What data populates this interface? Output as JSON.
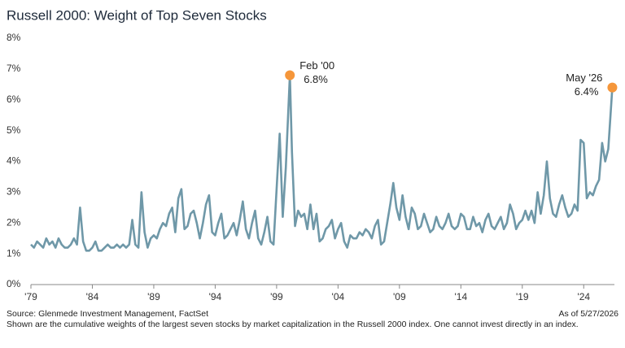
{
  "chart_data": {
    "type": "line",
    "title": "Russell 2000: Weight of Top Seven Stocks",
    "color": "#6f98a8",
    "highlight_color": "#f5963a",
    "xlim": [
      1979,
      2026.5
    ],
    "ylim": [
      0,
      8
    ],
    "xticks": [
      {
        "value": 1979,
        "label": "'79"
      },
      {
        "value": 1984,
        "label": "'84"
      },
      {
        "value": 1989,
        "label": "'89"
      },
      {
        "value": 1994,
        "label": "'94"
      },
      {
        "value": 1999,
        "label": "'99"
      },
      {
        "value": 2004,
        "label": "'04"
      },
      {
        "value": 2009,
        "label": "'09"
      },
      {
        "value": 2014,
        "label": "'14"
      },
      {
        "value": 2019,
        "label": "'19"
      },
      {
        "value": 2024,
        "label": "'24"
      }
    ],
    "yticks": [
      {
        "value": 0,
        "label": "0%"
      },
      {
        "value": 1,
        "label": "1%"
      },
      {
        "value": 2,
        "label": "2%"
      },
      {
        "value": 3,
        "label": "3%"
      },
      {
        "value": 4,
        "label": "4%"
      },
      {
        "value": 5,
        "label": "5%"
      },
      {
        "value": 6,
        "label": "6%"
      },
      {
        "value": 7,
        "label": "7%"
      },
      {
        "value": 8,
        "label": "8%"
      }
    ],
    "grid": false,
    "x": [
      1979,
      1979.25,
      1979.5,
      1979.75,
      1980,
      1980.25,
      1980.5,
      1980.75,
      1981,
      1981.25,
      1981.5,
      1981.75,
      1982,
      1982.25,
      1982.5,
      1982.75,
      1983,
      1983.25,
      1983.5,
      1983.75,
      1984,
      1984.25,
      1984.5,
      1984.75,
      1985,
      1985.25,
      1985.5,
      1985.75,
      1986,
      1986.25,
      1986.5,
      1986.75,
      1987,
      1987.25,
      1987.5,
      1987.75,
      1988,
      1988.25,
      1988.5,
      1988.75,
      1989,
      1989.25,
      1989.5,
      1989.75,
      1990,
      1990.25,
      1990.5,
      1990.75,
      1991,
      1991.25,
      1991.5,
      1991.75,
      1992,
      1992.25,
      1992.5,
      1992.75,
      1993,
      1993.25,
      1993.5,
      1993.75,
      1994,
      1994.25,
      1994.5,
      1994.75,
      1995,
      1995.25,
      1995.5,
      1995.75,
      1996,
      1996.25,
      1996.5,
      1996.75,
      1997,
      1997.25,
      1997.5,
      1997.75,
      1998,
      1998.25,
      1998.5,
      1998.75,
      1999,
      1999.25,
      1999.5,
      1999.75,
      2000.08,
      2000.25,
      2000.5,
      2000.75,
      2001,
      2001.25,
      2001.5,
      2001.75,
      2002,
      2002.25,
      2002.5,
      2002.75,
      2003,
      2003.25,
      2003.5,
      2003.75,
      2004,
      2004.25,
      2004.5,
      2004.75,
      2005,
      2005.25,
      2005.5,
      2005.75,
      2006,
      2006.25,
      2006.5,
      2006.75,
      2007,
      2007.25,
      2007.5,
      2007.75,
      2008,
      2008.25,
      2008.5,
      2008.75,
      2009,
      2009.25,
      2009.5,
      2009.75,
      2010,
      2010.25,
      2010.5,
      2010.75,
      2011,
      2011.25,
      2011.5,
      2011.75,
      2012,
      2012.25,
      2012.5,
      2012.75,
      2013,
      2013.25,
      2013.5,
      2013.75,
      2014,
      2014.25,
      2014.5,
      2014.75,
      2015,
      2015.25,
      2015.5,
      2015.75,
      2016,
      2016.25,
      2016.5,
      2016.75,
      2017,
      2017.25,
      2017.5,
      2017.75,
      2018,
      2018.25,
      2018.5,
      2018.75,
      2019,
      2019.25,
      2019.5,
      2019.75,
      2020,
      2020.25,
      2020.5,
      2020.75,
      2021,
      2021.25,
      2021.5,
      2021.75,
      2022,
      2022.25,
      2022.5,
      2022.75,
      2023,
      2023.25,
      2023.5,
      2023.75,
      2024,
      2024.25,
      2024.5,
      2024.75,
      2025,
      2025.25,
      2025.5,
      2025.75,
      2026,
      2026.33
    ],
    "values": [
      1.3,
      1.2,
      1.4,
      1.3,
      1.2,
      1.5,
      1.3,
      1.4,
      1.2,
      1.5,
      1.3,
      1.2,
      1.2,
      1.3,
      1.5,
      1.3,
      2.5,
      1.4,
      1.1,
      1.1,
      1.2,
      1.4,
      1.1,
      1.1,
      1.2,
      1.3,
      1.2,
      1.2,
      1.3,
      1.2,
      1.3,
      1.2,
      1.3,
      2.1,
      1.3,
      1.2,
      3.0,
      1.7,
      1.2,
      1.5,
      1.6,
      1.5,
      1.8,
      2.0,
      1.9,
      2.3,
      2.5,
      1.7,
      2.8,
      3.1,
      1.8,
      1.9,
      2.3,
      2.4,
      2.0,
      1.5,
      2.0,
      2.6,
      2.9,
      1.7,
      1.6,
      2.0,
      2.3,
      1.5,
      1.6,
      1.8,
      2.0,
      1.6,
      2.1,
      2.7,
      1.8,
      1.5,
      2.0,
      2.4,
      1.5,
      1.3,
      1.7,
      2.2,
      1.4,
      1.3,
      3.1,
      4.9,
      2.2,
      3.8,
      6.8,
      4.3,
      1.9,
      2.4,
      2.2,
      2.3,
      1.8,
      2.6,
      1.8,
      2.3,
      1.4,
      1.5,
      1.8,
      1.9,
      2.1,
      1.5,
      1.8,
      2.0,
      1.4,
      1.2,
      1.6,
      1.5,
      1.5,
      1.7,
      1.6,
      1.8,
      1.7,
      1.5,
      1.9,
      2.1,
      1.3,
      1.4,
      2.0,
      2.6,
      3.3,
      2.5,
      2.1,
      2.9,
      2.2,
      1.8,
      2.5,
      2.3,
      1.8,
      1.9,
      2.3,
      2.0,
      1.7,
      1.8,
      2.2,
      1.9,
      1.8,
      2.0,
      2.3,
      1.9,
      1.8,
      1.9,
      2.3,
      2.2,
      1.8,
      1.8,
      2.2,
      1.9,
      2.0,
      1.7,
      2.1,
      2.3,
      1.9,
      1.8,
      2.0,
      2.2,
      1.8,
      2.0,
      2.6,
      2.3,
      1.8,
      2.0,
      2.1,
      2.4,
      2.1,
      2.4,
      2.0,
      3.0,
      2.3,
      2.9,
      4.0,
      2.8,
      2.3,
      2.2,
      2.6,
      2.9,
      2.5,
      2.2,
      2.3,
      2.6,
      2.4,
      4.7,
      4.6,
      2.8,
      3.0,
      2.9,
      3.2,
      3.4,
      4.6,
      4.0,
      4.4,
      6.4
    ],
    "annotations": [
      {
        "x": 2000.08,
        "y": 6.8,
        "label": "Feb '00",
        "value_label": "6.8%"
      },
      {
        "x": 2026.33,
        "y": 6.4,
        "label": "May '26",
        "value_label": "6.4%"
      }
    ],
    "source": "Source: Glenmede Investment Management, FactSet",
    "as_of": "As of 5/27/2026",
    "note": "Shown are the cumulative weights of the largest seven stocks by market capitalization in the Russell 2000 index. One cannot invest directly in an index."
  }
}
